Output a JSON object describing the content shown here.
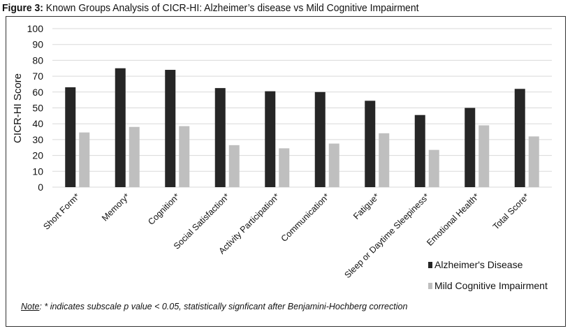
{
  "figure": {
    "label": "Figure 3:",
    "title": "Known Groups Analysis of CICR-HI: Alzheimer’s disease vs Mild Cognitive Impairment"
  },
  "note": {
    "label": "Note",
    "text": ": * indicates subscale p value < 0.05, statistically signficant after Benjamini-Hochberg correction"
  },
  "chart_data": {
    "type": "bar",
    "title": "",
    "xlabel": "",
    "ylabel": "CICR-HI Score",
    "ylim": [
      0,
      100
    ],
    "yticks": [
      0,
      10,
      20,
      30,
      40,
      50,
      60,
      70,
      80,
      90,
      100
    ],
    "grid": true,
    "legend_position": "bottom-right",
    "categories": [
      "Short Form*",
      "Memory*",
      "Cognition*",
      "Social Satisfaction*",
      "Activity Participation*",
      "Communication*",
      "Fatigue*",
      "Sleep or Daytime Sleepiness*",
      "Emotional Health*",
      "Total Score*"
    ],
    "series": [
      {
        "name": "Alzheimer's Disease",
        "color": "#262626",
        "values": [
          63,
          75,
          74,
          62.5,
          60.5,
          60,
          54.5,
          45.5,
          50,
          62
        ]
      },
      {
        "name": "Mild Cognitive Impairment",
        "color": "#bfbfbf",
        "values": [
          34.5,
          38,
          38.5,
          26.5,
          24.5,
          27.5,
          34,
          23.5,
          39,
          32
        ]
      }
    ]
  }
}
